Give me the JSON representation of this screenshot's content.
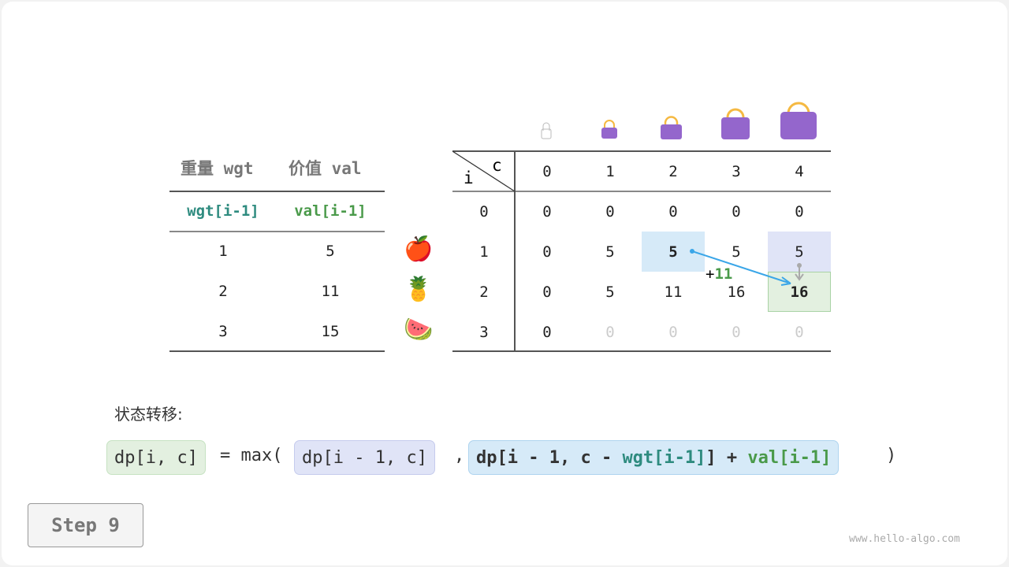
{
  "left_table": {
    "headers": [
      "重量 wgt",
      "价值 val"
    ],
    "subheaders": [
      "wgt[i-1]",
      "val[i-1]"
    ],
    "rows": [
      [
        "1",
        "5"
      ],
      [
        "2",
        "11"
      ],
      [
        "3",
        "15"
      ]
    ]
  },
  "items": [
    {
      "icon": "apple-icon",
      "glyph": "🍎"
    },
    {
      "icon": "pineapple-icon",
      "glyph": "🍍"
    },
    {
      "icon": "watermelon-icon",
      "glyph": "🍉"
    }
  ],
  "dp_table": {
    "corner_i": "i",
    "corner_c": "c",
    "col_headers": [
      "0",
      "1",
      "2",
      "3",
      "4"
    ],
    "row_headers": [
      "0",
      "1",
      "2",
      "3"
    ],
    "cells": [
      [
        "0",
        "0",
        "0",
        "0",
        "0"
      ],
      [
        "0",
        "5",
        "5",
        "5",
        "5"
      ],
      [
        "0",
        "5",
        "11",
        "16",
        "16"
      ],
      [
        "0",
        "0",
        "0",
        "0",
        "0"
      ]
    ],
    "annotation": {
      "plus": "+",
      "value": "11"
    }
  },
  "colors": {
    "wgt": "#2e8b7f",
    "val": "#4a9a4a",
    "blue_hl": "#d6eaf8",
    "lavender_hl": "#e0e4f7",
    "green_hl": "#e3f0e0",
    "bag": "#9466cc",
    "arrow": "#3aa6e8"
  },
  "formula": {
    "label": "状态转移:",
    "lhs": "dp[i, c]",
    "eq": "= max(",
    "opt1": "dp[i - 1, c]",
    "comma": ",",
    "opt2_a": "dp[i - 1, c - ",
    "opt2_wgt": "wgt[i-1]",
    "opt2_b": "] + ",
    "opt2_val": "val[i-1]",
    "close": ")"
  },
  "step_button": "Step 9",
  "watermark": "www.hello-algo.com"
}
